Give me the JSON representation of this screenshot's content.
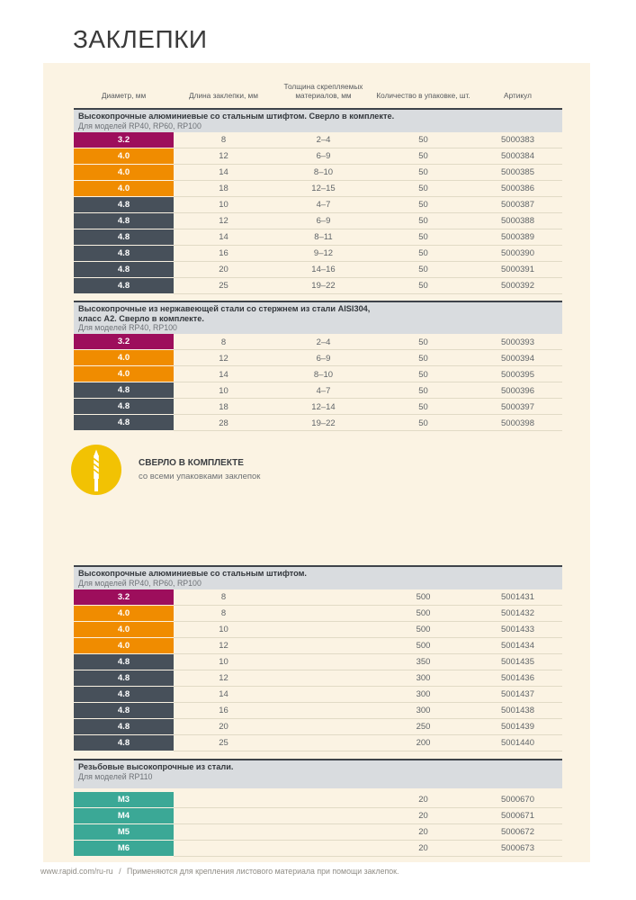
{
  "page": {
    "title": "ЗАКЛЕПКИ"
  },
  "colors": {
    "magenta": "#9d0e5c",
    "orange": "#f08c00",
    "slate": "#47505a",
    "teal": "#3ba896",
    "yellow": "#f2c203",
    "panel_bg": "#fbf3e3",
    "band_bg": "#d9dcdf"
  },
  "columns": [
    "Диаметр, мм",
    "Длина заклепки, мм",
    "Толщина скрепляемых материалов, мм",
    "Количество в упаковке, шт.",
    "Артикул"
  ],
  "callout": {
    "icon": "drill-bit-icon",
    "title": "СВЕРЛО В КОМПЛЕКТЕ",
    "subtitle": "со всеми упаковками заклепок"
  },
  "tables": [
    {
      "title": "Высокопрочные алюминиевые со стальным штифтом. Сверло в комплекте.",
      "subtitle": "Для моделей RP40, RP60, RP100",
      "rows": [
        {
          "diameter": "3.2",
          "color": "magenta",
          "length": "8",
          "thickness": "2–4",
          "qty": "50",
          "article": "5000383"
        },
        {
          "diameter": "4.0",
          "color": "orange",
          "length": "12",
          "thickness": "6–9",
          "qty": "50",
          "article": "5000384"
        },
        {
          "diameter": "4.0",
          "color": "orange",
          "length": "14",
          "thickness": "8–10",
          "qty": "50",
          "article": "5000385"
        },
        {
          "diameter": "4.0",
          "color": "orange",
          "length": "18",
          "thickness": "12–15",
          "qty": "50",
          "article": "5000386"
        },
        {
          "diameter": "4.8",
          "color": "slate",
          "length": "10",
          "thickness": "4–7",
          "qty": "50",
          "article": "5000387"
        },
        {
          "diameter": "4.8",
          "color": "slate",
          "length": "12",
          "thickness": "6–9",
          "qty": "50",
          "article": "5000388"
        },
        {
          "diameter": "4.8",
          "color": "slate",
          "length": "14",
          "thickness": "8–11",
          "qty": "50",
          "article": "5000389"
        },
        {
          "diameter": "4.8",
          "color": "slate",
          "length": "16",
          "thickness": "9–12",
          "qty": "50",
          "article": "5000390"
        },
        {
          "diameter": "4.8",
          "color": "slate",
          "length": "20",
          "thickness": "14–16",
          "qty": "50",
          "article": "5000391"
        },
        {
          "diameter": "4.8",
          "color": "slate",
          "length": "25",
          "thickness": "19–22",
          "qty": "50",
          "article": "5000392"
        }
      ]
    },
    {
      "title": "Высокопрочные из нержавеющей стали со стержнем из стали AISI304,\nкласс А2. Сверло в комплекте.",
      "subtitle": "Для моделей RP40, RP100",
      "rows": [
        {
          "diameter": "3.2",
          "color": "magenta",
          "length": "8",
          "thickness": "2–4",
          "qty": "50",
          "article": "5000393"
        },
        {
          "diameter": "4.0",
          "color": "orange",
          "length": "12",
          "thickness": "6–9",
          "qty": "50",
          "article": "5000394"
        },
        {
          "diameter": "4.0",
          "color": "orange",
          "length": "14",
          "thickness": "8–10",
          "qty": "50",
          "article": "5000395"
        },
        {
          "diameter": "4.8",
          "color": "slate",
          "length": "10",
          "thickness": "4–7",
          "qty": "50",
          "article": "5000396"
        },
        {
          "diameter": "4.8",
          "color": "slate",
          "length": "18",
          "thickness": "12–14",
          "qty": "50",
          "article": "5000397"
        },
        {
          "diameter": "4.8",
          "color": "slate",
          "length": "28",
          "thickness": "19–22",
          "qty": "50",
          "article": "5000398"
        }
      ]
    },
    {
      "title": "Высокопрочные алюминиевые со стальным штифтом.",
      "subtitle": "Для моделей RP40, RP60, RP100",
      "rows": [
        {
          "diameter": "3.2",
          "color": "magenta",
          "length": "8",
          "thickness": "",
          "qty": "500",
          "article": "5001431"
        },
        {
          "diameter": "4.0",
          "color": "orange",
          "length": "8",
          "thickness": "",
          "qty": "500",
          "article": "5001432"
        },
        {
          "diameter": "4.0",
          "color": "orange",
          "length": "10",
          "thickness": "",
          "qty": "500",
          "article": "5001433"
        },
        {
          "diameter": "4.0",
          "color": "orange",
          "length": "12",
          "thickness": "",
          "qty": "500",
          "article": "5001434"
        },
        {
          "diameter": "4.8",
          "color": "slate",
          "length": "10",
          "thickness": "",
          "qty": "350",
          "article": "5001435"
        },
        {
          "diameter": "4.8",
          "color": "slate",
          "length": "12",
          "thickness": "",
          "qty": "300",
          "article": "5001436"
        },
        {
          "diameter": "4.8",
          "color": "slate",
          "length": "14",
          "thickness": "",
          "qty": "300",
          "article": "5001437"
        },
        {
          "diameter": "4.8",
          "color": "slate",
          "length": "16",
          "thickness": "",
          "qty": "300",
          "article": "5001438"
        },
        {
          "diameter": "4.8",
          "color": "slate",
          "length": "20",
          "thickness": "",
          "qty": "250",
          "article": "5001439"
        },
        {
          "diameter": "4.8",
          "color": "slate",
          "length": "25",
          "thickness": "",
          "qty": "200",
          "article": "5001440"
        }
      ]
    },
    {
      "title": "Резьбовые высокопрочные из стали.",
      "subtitle": "Для моделей RP110",
      "rows": [
        {
          "diameter": "M3",
          "color": "teal",
          "length": "",
          "thickness": "",
          "qty": "20",
          "article": "5000670"
        },
        {
          "diameter": "M4",
          "color": "teal",
          "length": "",
          "thickness": "",
          "qty": "20",
          "article": "5000671"
        },
        {
          "diameter": "M5",
          "color": "teal",
          "length": "",
          "thickness": "",
          "qty": "20",
          "article": "5000672"
        },
        {
          "diameter": "M6",
          "color": "teal",
          "length": "",
          "thickness": "",
          "qty": "20",
          "article": "5000673"
        }
      ]
    }
  ],
  "footer": {
    "url": "www.rapid.com/ru-ru",
    "separator": "/",
    "note": "Применяются для крепления листового материала при помощи заклепок."
  }
}
